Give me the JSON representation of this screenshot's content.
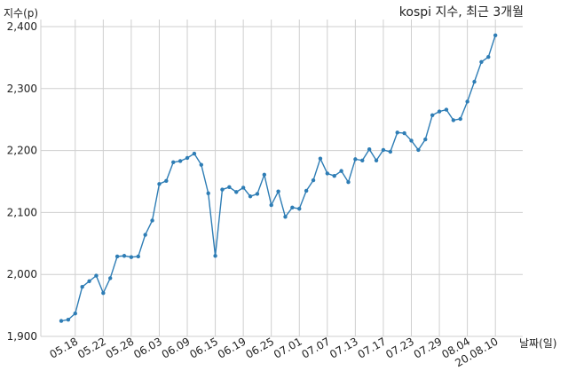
{
  "chart_data": {
    "type": "line",
    "title": "kospi 지수, 최근 3개월",
    "ylabel": "지수(p)",
    "xlabel": "날짜(일)",
    "ylim": [
      1900,
      2400
    ],
    "yticks": [
      1900,
      2000,
      2100,
      2200,
      2300,
      2400
    ],
    "ytick_labels": [
      "1,900",
      "2,000",
      "2,100",
      "2,200",
      "2,300",
      "2,400"
    ],
    "grid": true,
    "xtick_labels": [
      {
        "label": "05.18",
        "index": 2
      },
      {
        "label": "05.22",
        "index": 6
      },
      {
        "label": "05.28",
        "index": 10
      },
      {
        "label": "06.03",
        "index": 14
      },
      {
        "label": "06.09",
        "index": 18
      },
      {
        "label": "06.15",
        "index": 22
      },
      {
        "label": "06.19",
        "index": 26
      },
      {
        "label": "06.25",
        "index": 30
      },
      {
        "label": "07.01",
        "index": 34
      },
      {
        "label": "07.07",
        "index": 38
      },
      {
        "label": "07.13",
        "index": 42
      },
      {
        "label": "07.17",
        "index": 46
      },
      {
        "label": "07.23",
        "index": 50
      },
      {
        "label": "07.29",
        "index": 54
      },
      {
        "label": "08.04",
        "index": 58
      },
      {
        "label": "20.08.10",
        "index": 62
      }
    ],
    "series": [
      {
        "color": "#2e7db5",
        "values": [
          1925,
          1927,
          1937,
          1980,
          1989,
          1998,
          1970,
          1994,
          2029,
          2030,
          2028,
          2029,
          2064,
          2087,
          2146,
          2151,
          2181,
          2183,
          2188,
          2195,
          2177,
          2131,
          2030,
          2137,
          2141,
          2133,
          2140,
          2126,
          2130,
          2161,
          2112,
          2134,
          2093,
          2108,
          2106,
          2135,
          2152,
          2187,
          2163,
          2159,
          2167,
          2149,
          2186,
          2184,
          2202,
          2184,
          2201,
          2198,
          2229,
          2228,
          2216,
          2201,
          2218,
          2257,
          2263,
          2266,
          2249,
          2251,
          2279,
          2311,
          2343,
          2351,
          2386
        ]
      }
    ]
  }
}
